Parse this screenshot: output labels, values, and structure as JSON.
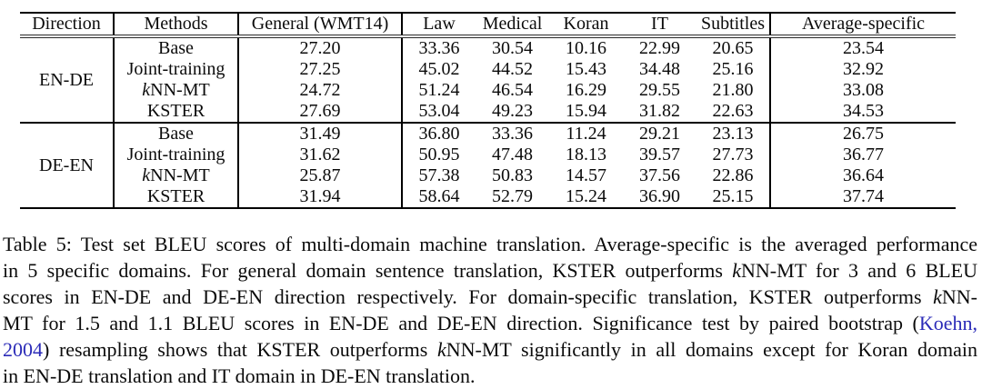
{
  "table": {
    "headers": [
      "Direction",
      "Methods",
      "General (WMT14)",
      "Law",
      "Medical",
      "Koran",
      "IT",
      "Subtitles",
      "Average-specific"
    ],
    "blocks": [
      {
        "direction": "EN-DE",
        "rows": [
          {
            "method": "Base",
            "italic_first": false,
            "values": [
              "27.20",
              "33.36",
              "30.54",
              "10.16",
              "22.99",
              "20.65",
              "23.54"
            ],
            "bold": [
              0,
              0,
              0,
              0,
              0,
              0,
              0
            ]
          },
          {
            "method": "Joint-training",
            "italic_first": false,
            "values": [
              "27.25",
              "45.02",
              "44.52",
              "15.43",
              "34.48",
              "25.16",
              "32.92"
            ],
            "bold": [
              0,
              0,
              0,
              0,
              1,
              1,
              0
            ]
          },
          {
            "method": "kNN-MT",
            "italic_first": true,
            "values": [
              "24.72",
              "51.24",
              "46.54",
              "16.29",
              "29.55",
              "21.80",
              "33.08"
            ],
            "bold": [
              0,
              0,
              0,
              1,
              0,
              0,
              0
            ]
          },
          {
            "method": "KSTER",
            "italic_first": false,
            "values": [
              "27.69",
              "53.04",
              "49.23",
              "15.94",
              "31.82",
              "22.63",
              "34.53"
            ],
            "bold": [
              1,
              1,
              1,
              0,
              0,
              0,
              1
            ]
          }
        ]
      },
      {
        "direction": "DE-EN",
        "rows": [
          {
            "method": "Base",
            "italic_first": false,
            "values": [
              "31.49",
              "36.80",
              "33.36",
              "11.24",
              "29.21",
              "23.13",
              "26.75"
            ],
            "bold": [
              0,
              0,
              0,
              0,
              0,
              0,
              0
            ]
          },
          {
            "method": "Joint-training",
            "italic_first": false,
            "values": [
              "31.62",
              "50.95",
              "47.48",
              "18.13",
              "39.57",
              "27.73",
              "36.77"
            ],
            "bold": [
              0,
              0,
              0,
              1,
              1,
              1,
              0
            ]
          },
          {
            "method": "kNN-MT",
            "italic_first": true,
            "values": [
              "25.87",
              "57.38",
              "50.83",
              "14.57",
              "37.56",
              "22.86",
              "36.64"
            ],
            "bold": [
              0,
              0,
              0,
              0,
              0,
              0,
              0
            ]
          },
          {
            "method": "KSTER",
            "italic_first": false,
            "values": [
              "31.94",
              "58.64",
              "52.79",
              "15.24",
              "36.90",
              "25.15",
              "37.74"
            ],
            "bold": [
              1,
              1,
              1,
              0,
              0,
              0,
              1
            ]
          }
        ]
      }
    ]
  },
  "caption": {
    "lines": [
      [
        {
          "t": "Table 5: Test set BLEU scores of multi-domain machine translation. Average-specific is the averaged performance",
          "s": "n"
        }
      ],
      [
        {
          "t": "in 5 specific domains. For general domain sentence translation, KSTER outperforms ",
          "s": "n"
        },
        {
          "t": "k",
          "s": "i"
        },
        {
          "t": "NN-MT for 3 and 6 BLEU",
          "s": "n"
        }
      ],
      [
        {
          "t": "scores in EN-DE and DE-EN direction respectively. For domain-specific translation, KSTER outperforms ",
          "s": "n"
        },
        {
          "t": "k",
          "s": "i"
        },
        {
          "t": "NN-",
          "s": "n"
        }
      ],
      [
        {
          "t": "MT for 1.5 and 1.1 BLEU scores in EN-DE and DE-EN direction. Significance test by paired bootstrap (",
          "s": "n"
        },
        {
          "t": "Koehn,",
          "s": "l"
        }
      ],
      [
        {
          "t": "2004",
          "s": "l"
        },
        {
          "t": ") resampling shows that KSTER outperforms ",
          "s": "n"
        },
        {
          "t": "k",
          "s": "i"
        },
        {
          "t": "NN-MT significantly in all domains except for Koran domain",
          "s": "n"
        }
      ],
      [
        {
          "t": "in EN-DE translation and IT domain in DE-EN translation.",
          "s": "n"
        }
      ]
    ]
  },
  "colors": {
    "link": "#2b2bb8",
    "text": "#0b0b0b",
    "rule": "#000000"
  }
}
